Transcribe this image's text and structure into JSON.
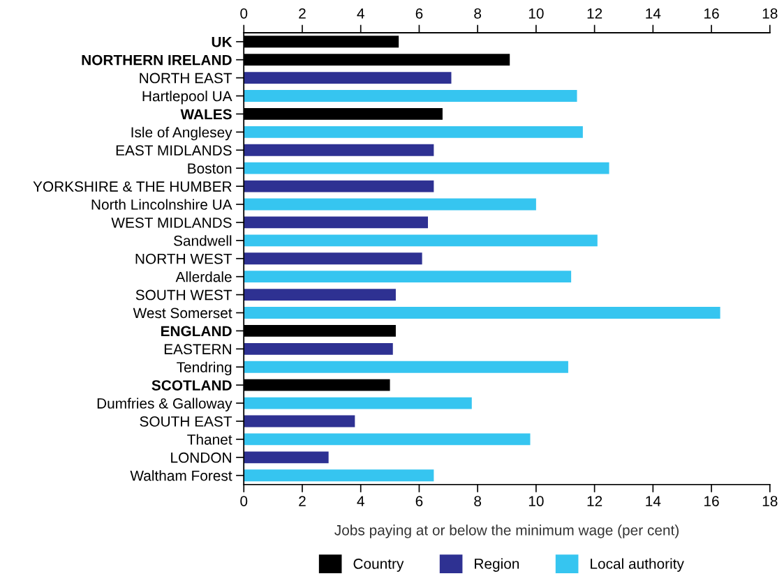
{
  "chart_data": {
    "type": "bar",
    "orientation": "horizontal",
    "categories": [
      "UK",
      "NORTHERN IRELAND",
      "NORTH EAST",
      "Hartlepool UA",
      "WALES",
      "Isle of Anglesey",
      "EAST MIDLANDS",
      "Boston",
      "YORKSHIRE & THE HUMBER",
      "North Lincolnshire UA",
      "WEST MIDLANDS",
      "Sandwell",
      "NORTH WEST",
      "Allerdale",
      "SOUTH WEST",
      "West Somerset",
      "ENGLAND",
      "EASTERN",
      "Tendring",
      "SCOTLAND",
      "Dumfries & Galloway",
      "SOUTH EAST",
      "Thanet",
      "LONDON",
      "Waltham Forest"
    ],
    "series": [
      {
        "name": "Country",
        "color": "#000000",
        "values": [
          5.3,
          9.1,
          null,
          null,
          6.8,
          null,
          null,
          null,
          null,
          null,
          null,
          null,
          null,
          null,
          null,
          null,
          5.2,
          null,
          null,
          5.0,
          null,
          null,
          null,
          null,
          null
        ]
      },
      {
        "name": "Region",
        "color": "#2e3192",
        "values": [
          null,
          null,
          7.1,
          null,
          null,
          null,
          6.5,
          null,
          6.5,
          null,
          6.3,
          null,
          6.1,
          null,
          5.2,
          null,
          null,
          5.1,
          null,
          null,
          null,
          3.8,
          null,
          2.9,
          null
        ]
      },
      {
        "name": "Local authority",
        "color": "#36c5f0",
        "values": [
          null,
          null,
          null,
          11.4,
          null,
          11.6,
          null,
          12.5,
          null,
          10.0,
          null,
          12.1,
          null,
          11.2,
          null,
          16.3,
          null,
          null,
          11.1,
          null,
          7.8,
          null,
          9.8,
          null,
          6.5
        ]
      }
    ],
    "xlim": [
      0,
      18
    ],
    "xticks": [
      0,
      2,
      4,
      6,
      8,
      10,
      12,
      14,
      16,
      18
    ],
    "x2lim": [
      0,
      18
    ],
    "x2ticks": [
      0,
      2,
      4,
      6,
      8,
      10,
      12,
      14,
      16,
      18
    ],
    "xlabel": "Jobs paying at or below the minimum wage (per cent)",
    "grid": false,
    "legend": "bottom"
  }
}
